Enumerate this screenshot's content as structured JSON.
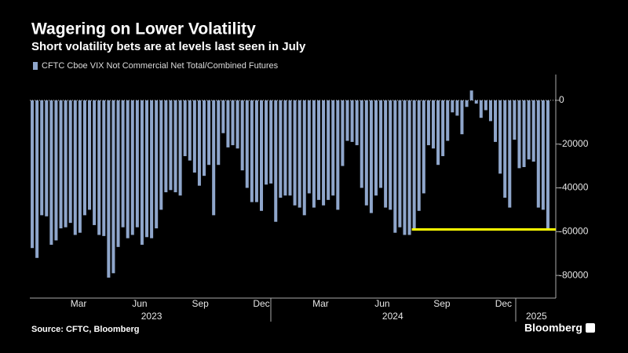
{
  "chart_data": {
    "type": "bar",
    "title": "Wagering on Lower Volatility",
    "subtitle": "Short volatility bets are at levels last seen in July",
    "source": "Source: CFTC, Bloomberg",
    "brand": "Bloomberg",
    "series": [
      {
        "name": "CFTC Cboe VIX Not Commercial Net Total/Combined Futures",
        "color": "#8fa6cb",
        "values": [
          -67500,
          -72000,
          -52500,
          -53000,
          -66000,
          -64000,
          -58500,
          -58000,
          -56000,
          -61500,
          -60500,
          -52500,
          -50000,
          -57000,
          -61500,
          -62000,
          -81000,
          -79000,
          -67000,
          -58000,
          -63000,
          -61500,
          -58000,
          -66000,
          -62500,
          -63000,
          -58500,
          -50000,
          -42000,
          -41000,
          -42000,
          -43500,
          -25500,
          -27500,
          -33000,
          -39000,
          -34500,
          -29500,
          -52500,
          -29500,
          -15000,
          -21500,
          -20500,
          -22000,
          -32000,
          -40000,
          -46500,
          -46500,
          -50500,
          -38500,
          -38000,
          -55500,
          -44500,
          -43500,
          -43500,
          -48000,
          -49000,
          -52500,
          -42500,
          -49000,
          -45500,
          -48000,
          -45500,
          -43500,
          -50000,
          -30000,
          -18500,
          -19000,
          -20500,
          -40000,
          -48000,
          -51500,
          -43500,
          -40000,
          -49000,
          -50000,
          -60500,
          -58000,
          -61500,
          -61500,
          -58500,
          -50500,
          -42500,
          -20500,
          -22000,
          -29500,
          -25500,
          -18500,
          -5500,
          -7000,
          -15500,
          -3000,
          4500,
          -1500,
          -8000,
          -4500,
          -9500,
          -19000,
          -33500,
          -44500,
          -49000,
          -18000,
          -31000,
          -30500,
          -27000,
          -28000,
          -49000,
          -50000,
          -58500
        ]
      }
    ],
    "reference_line": {
      "value": -59000,
      "color": "#ffff00",
      "from_index": 79.5
    },
    "ylim": [
      -90000,
      10000
    ],
    "yticks": [
      0,
      -20000,
      -40000,
      -60000,
      -80000
    ],
    "xticks": [
      {
        "value": 9.7,
        "label": "Mar"
      },
      {
        "value": 22.5,
        "label": "Jun"
      },
      {
        "value": 35.2,
        "label": "Sep"
      },
      {
        "value": 48,
        "label": "Dec"
      },
      {
        "value": 60.4,
        "label": "Mar"
      },
      {
        "value": 73.3,
        "label": "Jun"
      },
      {
        "value": 85.8,
        "label": "Sep"
      },
      {
        "value": 98.7,
        "label": "Dec"
      }
    ],
    "year_labels": [
      {
        "value": 25,
        "label": "2023"
      },
      {
        "value": 75.5,
        "label": "2024"
      },
      {
        "value": 105.6,
        "label": "2025"
      }
    ]
  }
}
